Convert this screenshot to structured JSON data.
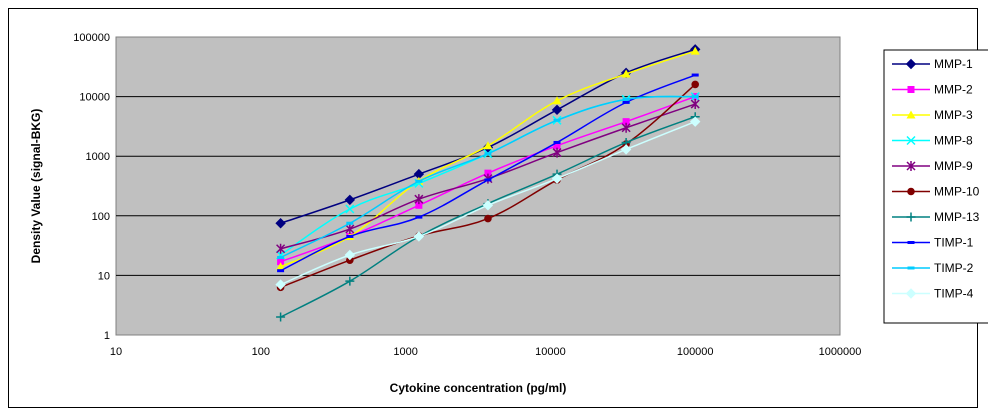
{
  "chart_data": {
    "type": "line",
    "title": "",
    "xlabel": "Cytokine concentration (pg/ml)",
    "ylabel": "Density Value (signal-BKG)",
    "x_scale": "log",
    "y_scale": "log",
    "xlim": [
      10,
      1000000
    ],
    "ylim": [
      1,
      100000
    ],
    "x_ticks": [
      "10",
      "100",
      "1000",
      "10000",
      "100000",
      "1000000"
    ],
    "y_ticks": [
      "1",
      "10",
      "100",
      "1000",
      "10000",
      "100000"
    ],
    "grid": "horizontal",
    "legend_position": "right",
    "plot_background": "#c0c0c0",
    "x": [
      137,
      412,
      1235,
      3704,
      11111,
      33333,
      100000
    ],
    "series": [
      {
        "name": "MMP-1",
        "color": "#000080",
        "marker": "diamond",
        "values": [
          75,
          185,
          500,
          1400,
          6000,
          25000,
          62000
        ]
      },
      {
        "name": "MMP-2",
        "color": "#ff00ff",
        "marker": "square",
        "values": [
          17,
          45,
          150,
          520,
          1500,
          3800,
          10000
        ]
      },
      {
        "name": "MMP-3",
        "color": "#ffff00",
        "marker": "triangle",
        "values": [
          14,
          45,
          380,
          1500,
          8500,
          24000,
          58000
        ]
      },
      {
        "name": "MMP-8",
        "color": "#00ffff",
        "marker": "x",
        "values": [
          22,
          130,
          350,
          1100,
          4000,
          9000,
          10000
        ]
      },
      {
        "name": "MMP-9",
        "color": "#800080",
        "marker": "asterisk",
        "values": [
          28,
          60,
          190,
          420,
          1150,
          3000,
          7500
        ]
      },
      {
        "name": "MMP-10",
        "color": "#800000",
        "marker": "circle",
        "values": [
          6.3,
          18,
          46,
          90,
          400,
          1600,
          16000
        ]
      },
      {
        "name": "MMP-13",
        "color": "#008080",
        "marker": "plus",
        "values": [
          2,
          8,
          45,
          160,
          500,
          1700,
          4600
        ]
      },
      {
        "name": "TIMP-1",
        "color": "#0000ff",
        "marker": "dash",
        "values": [
          12,
          45,
          95,
          400,
          1700,
          8000,
          23000
        ]
      },
      {
        "name": "TIMP-2",
        "color": "#00ccff",
        "marker": "dash",
        "values": [
          20,
          75,
          380,
          1100,
          4000,
          9000,
          10000
        ]
      },
      {
        "name": "TIMP-4",
        "color": "#ccffff",
        "marker": "diamond",
        "values": [
          7,
          22,
          45,
          150,
          420,
          1300,
          3800
        ]
      }
    ]
  }
}
